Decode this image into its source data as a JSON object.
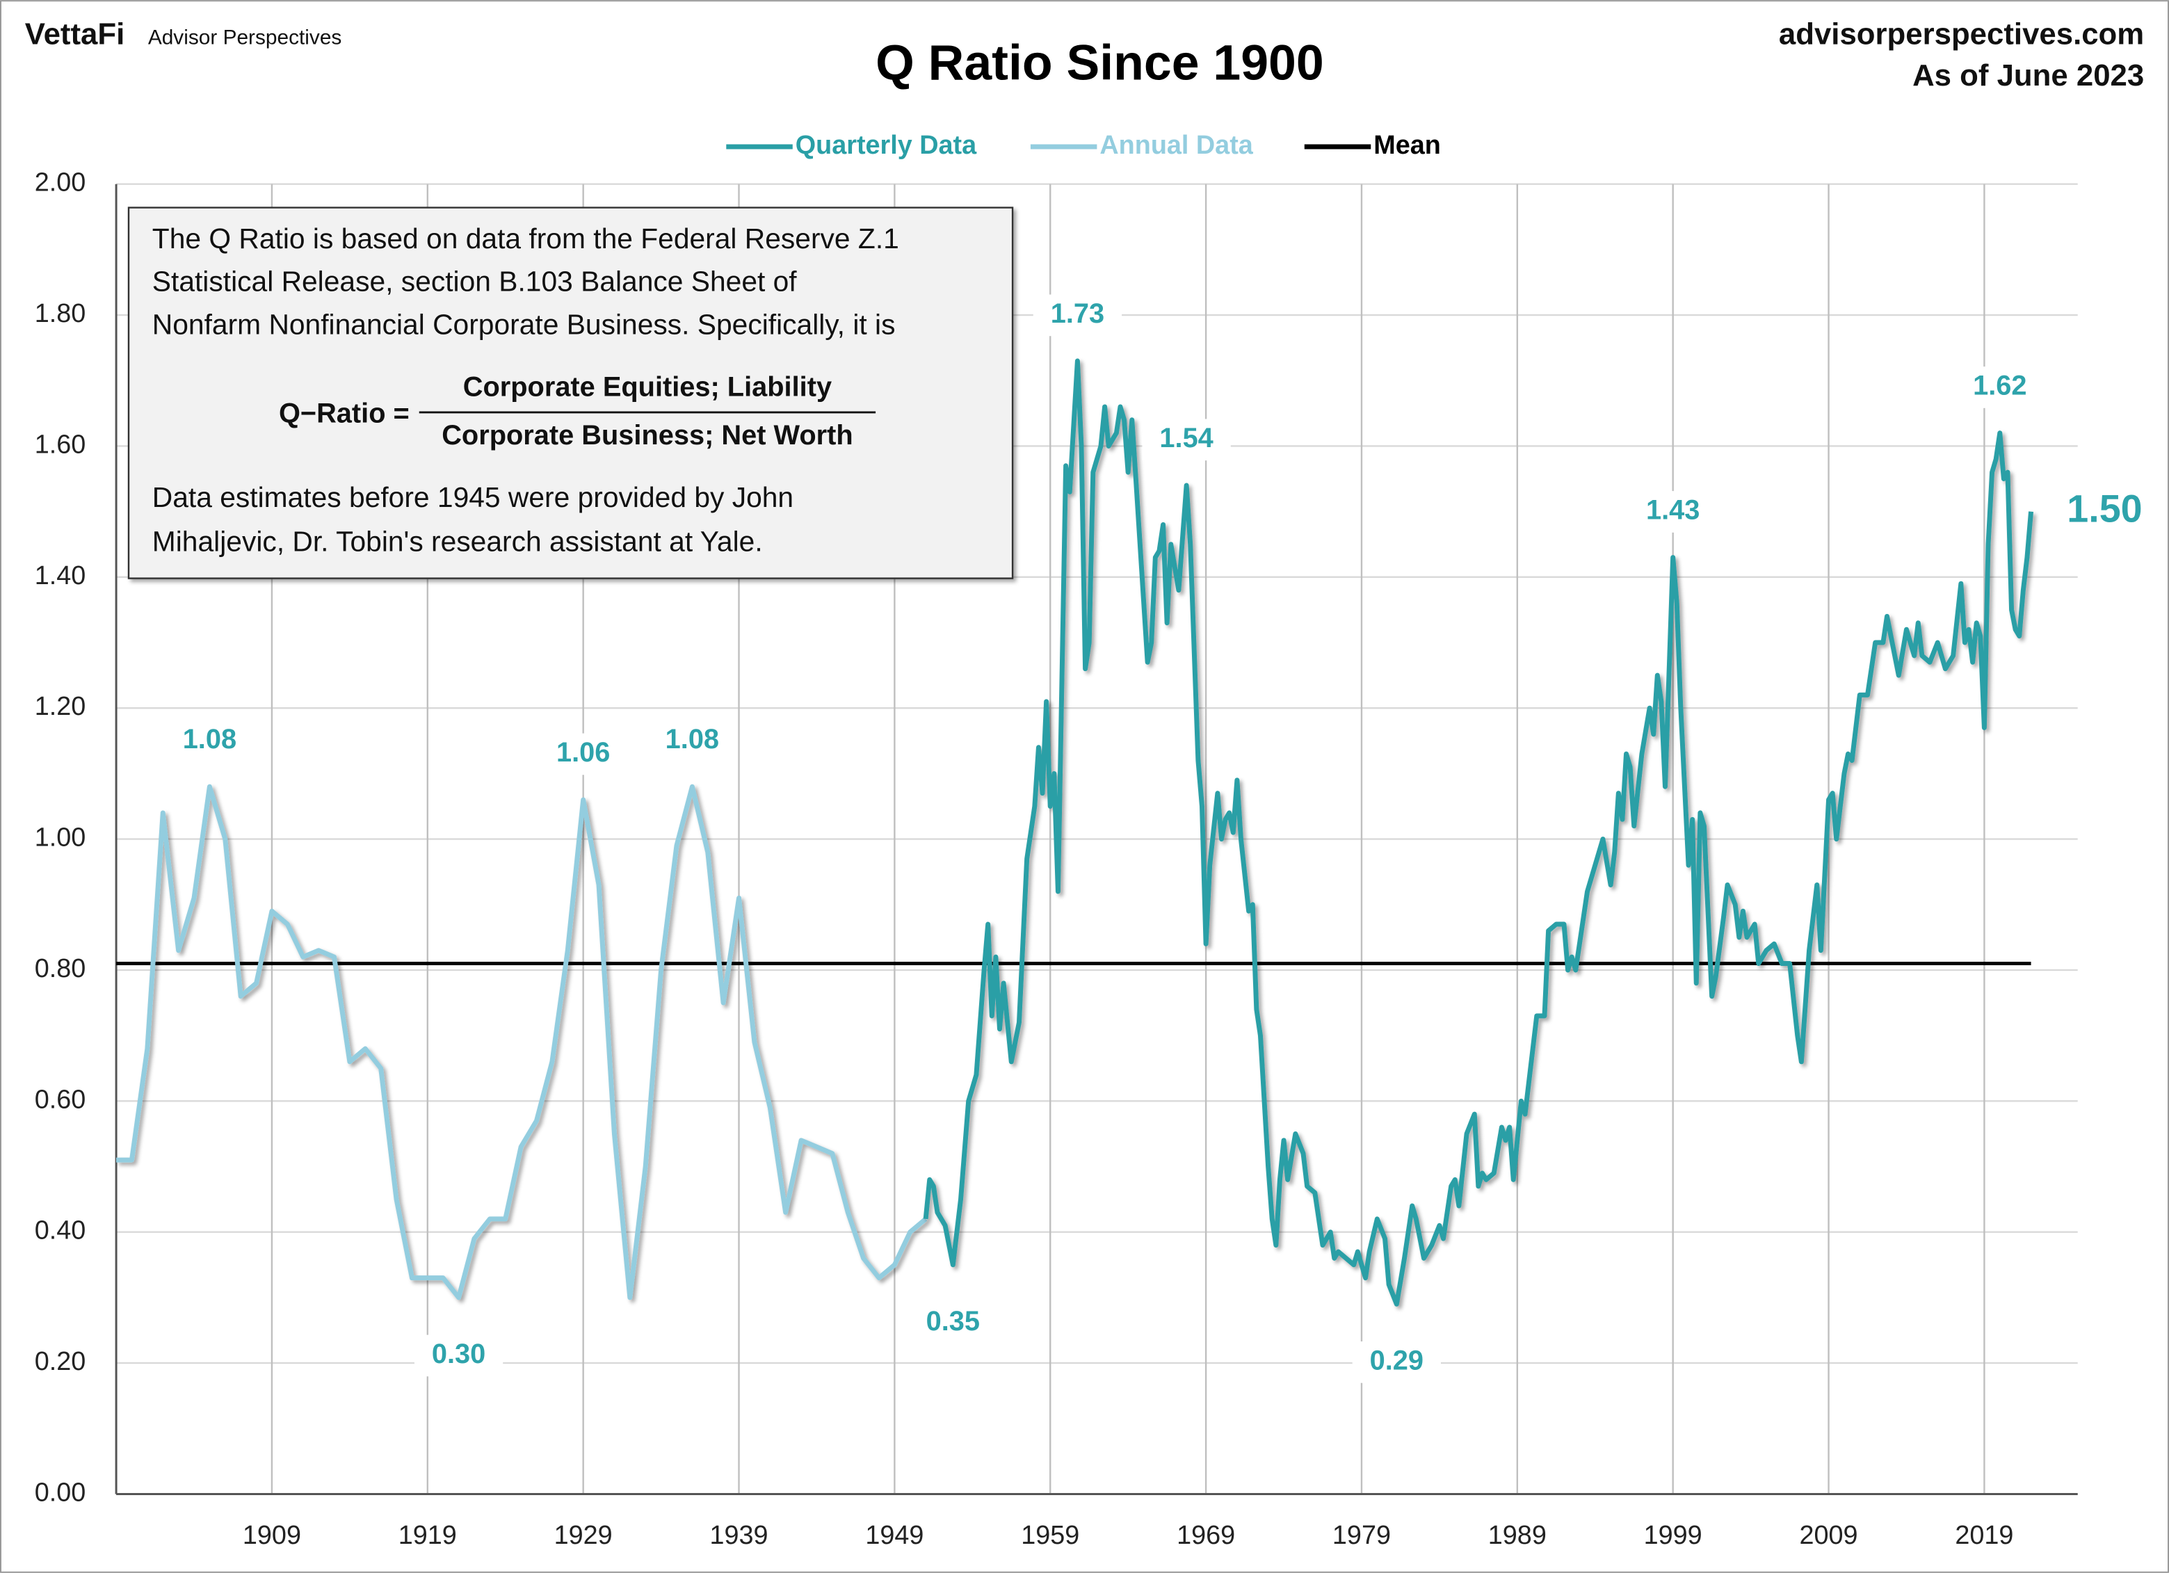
{
  "chart_data": {
    "type": "line",
    "title": "Q Ratio Since 1900",
    "brand": "VettaFi",
    "brand_sub": "Advisor Perspectives",
    "site": "advisorperspectives.com",
    "as_of": "As of June 2023",
    "xlim": [
      1899,
      2025
    ],
    "xticks": [
      1909,
      1919,
      1929,
      1939,
      1949,
      1959,
      1969,
      1979,
      1989,
      1999,
      2009,
      2019
    ],
    "ylim": [
      0,
      2
    ],
    "yticks": [
      {
        "value": 0,
        "label": "0.00"
      },
      {
        "value": 0.2,
        "label": "0.20"
      },
      {
        "value": 0.4,
        "label": "0.40"
      },
      {
        "value": 0.6,
        "label": "0.60"
      },
      {
        "value": 0.8,
        "label": "0.80"
      },
      {
        "value": 1,
        "label": "1.00"
      },
      {
        "value": 1.2,
        "label": "1.20"
      },
      {
        "value": 1.4,
        "label": "1.40"
      },
      {
        "value": 1.6,
        "label": "1.60"
      },
      {
        "value": 1.8,
        "label": "1.80"
      },
      {
        "value": 2,
        "label": "2.00"
      }
    ],
    "grid": true,
    "series": [
      {
        "name": "Quarterly Data",
        "color": "#2a9fa6",
        "x": [
          1951,
          1951.25,
          1951.5,
          1951.75,
          1952.25,
          1952.75,
          1953.25,
          1953.75,
          1954.25,
          1954.75,
          1955,
          1955.25,
          1955.5,
          1955.75,
          1956,
          1956.5,
          1957,
          1957.5,
          1958,
          1958.25,
          1958.5,
          1958.75,
          1959,
          1959.25,
          1959.5,
          1960,
          1960.25,
          1960.75,
          1961,
          1961.25,
          1961.5,
          1961.75,
          1962.25,
          1962.5,
          1962.75,
          1963.25,
          1963.5,
          1963.75,
          1964,
          1964.25,
          1964.5,
          1965.25,
          1965.5,
          1965.75,
          1966,
          1966.25,
          1966.5,
          1966.75,
          1967.25,
          1967.75,
          1968,
          1968.5,
          1968.75,
          1969,
          1969.25,
          1969.75,
          1970,
          1970.25,
          1970.5,
          1970.75,
          1971,
          1971.25,
          1971.75,
          1972,
          1972.25,
          1972.5,
          1973,
          1973.25,
          1973.5,
          1973.75,
          1974,
          1974.25,
          1974.75,
          1975.25,
          1975.5,
          1976,
          1976.5,
          1977,
          1977.25,
          1977.5,
          1978,
          1978.5,
          1978.75,
          1979.25,
          1979.5,
          1980,
          1980.5,
          1980.75,
          1981.25,
          1981.75,
          1982.25,
          1982.5,
          1983,
          1983.5,
          1984,
          1984.25,
          1984.75,
          1985,
          1985.25,
          1985.75,
          1986.25,
          1986.5,
          1986.75,
          1987,
          1987.5,
          1988,
          1988.25,
          1988.5,
          1988.75,
          1989.25,
          1989.5,
          1990,
          1990.25,
          1990.75,
          1991,
          1991.5,
          1992,
          1992.25,
          1992.5,
          1992.75,
          1993.5,
          1994,
          1994.5,
          1995,
          1995.25,
          1995.5,
          1995.75,
          1996,
          1996.25,
          1996.5,
          1997,
          1997.5,
          1997.75,
          1998,
          1998.25,
          1998.5,
          1999,
          1999.25,
          1999.5,
          2000,
          2000.25,
          2000.5,
          2000.75,
          2001,
          2001.5,
          2001.75,
          2002.25,
          2002.5,
          2003,
          2003.25,
          2003.5,
          2003.75,
          2004.25,
          2004.5,
          2005,
          2005.5,
          2006,
          2006.5,
          2007,
          2007.25,
          2007.75,
          2008.25,
          2008.5,
          2009,
          2009.25,
          2009.5,
          2010,
          2010.25,
          2010.5,
          2011,
          2011.5,
          2012,
          2012.5,
          2012.75,
          2013,
          2013.5,
          2014,
          2014.5,
          2014.75,
          2015,
          2015.5,
          2016,
          2016.5,
          2017,
          2017.5,
          2017.75,
          2018,
          2018.25,
          2018.5,
          2018.75,
          2019,
          2019.25,
          2019.5,
          2019.75,
          2020,
          2020.25,
          2020.5,
          2020.75,
          2021,
          2021.25,
          2021.5,
          2021.75,
          2022
        ],
        "values": [
          0.42,
          0.48,
          0.47,
          0.43,
          0.41,
          0.35,
          0.45,
          0.6,
          0.64,
          0.8,
          0.87,
          0.73,
          0.82,
          0.71,
          0.78,
          0.66,
          0.72,
          0.97,
          1.05,
          1.14,
          1.07,
          1.21,
          1.05,
          1.1,
          0.92,
          1.57,
          1.53,
          1.73,
          1.6,
          1.26,
          1.3,
          1.56,
          1.6,
          1.66,
          1.6,
          1.62,
          1.66,
          1.64,
          1.56,
          1.64,
          1.55,
          1.27,
          1.3,
          1.43,
          1.44,
          1.48,
          1.33,
          1.45,
          1.38,
          1.54,
          1.45,
          1.12,
          1.05,
          0.84,
          0.96,
          1.07,
          1.0,
          1.03,
          1.04,
          1.01,
          1.09,
          1.0,
          0.89,
          0.9,
          0.74,
          0.7,
          0.5,
          0.42,
          0.38,
          0.48,
          0.54,
          0.48,
          0.55,
          0.52,
          0.47,
          0.46,
          0.38,
          0.4,
          0.36,
          0.37,
          0.36,
          0.35,
          0.37,
          0.33,
          0.37,
          0.42,
          0.39,
          0.32,
          0.29,
          0.36,
          0.44,
          0.42,
          0.36,
          0.38,
          0.41,
          0.39,
          0.47,
          0.48,
          0.44,
          0.55,
          0.58,
          0.47,
          0.49,
          0.48,
          0.49,
          0.56,
          0.54,
          0.56,
          0.48,
          0.6,
          0.58,
          0.68,
          0.73,
          0.73,
          0.86,
          0.87,
          0.87,
          0.8,
          0.82,
          0.8,
          0.92,
          0.96,
          1.0,
          0.93,
          0.98,
          1.07,
          1.03,
          1.13,
          1.11,
          1.02,
          1.13,
          1.2,
          1.16,
          1.25,
          1.21,
          1.08,
          1.43,
          1.36,
          1.2,
          0.96,
          1.03,
          0.78,
          1.04,
          1.02,
          0.76,
          0.79,
          0.88,
          0.93,
          0.9,
          0.85,
          0.89,
          0.85,
          0.87,
          0.81,
          0.83,
          0.84,
          0.81,
          0.81,
          0.7,
          0.66,
          0.83,
          0.93,
          0.83,
          1.06,
          1.07,
          1.0,
          1.1,
          1.13,
          1.12,
          1.22,
          1.22,
          1.3,
          1.3,
          1.34,
          1.31,
          1.25,
          1.32,
          1.28,
          1.33,
          1.28,
          1.27,
          1.3,
          1.26,
          1.28,
          1.39,
          1.3,
          1.32,
          1.27,
          1.33,
          1.31,
          1.17,
          1.45,
          1.56,
          1.58,
          1.62,
          1.55,
          1.56,
          1.35,
          1.32,
          1.31,
          1.38,
          1.43,
          1.5
        ]
      },
      {
        "name": "Annual Data",
        "color": "#93cddf",
        "x": [
          1899,
          1900,
          1901,
          1902,
          1903,
          1904,
          1905,
          1906,
          1907,
          1908,
          1909,
          1910,
          1911,
          1912,
          1913,
          1914,
          1915,
          1916,
          1917,
          1918,
          1919,
          1920,
          1921,
          1922,
          1923,
          1924,
          1925,
          1926,
          1927,
          1928,
          1929,
          1930,
          1931,
          1932,
          1933,
          1934,
          1935,
          1936,
          1937,
          1938,
          1939,
          1940,
          1941,
          1942,
          1943,
          1944,
          1945,
          1946,
          1947,
          1948,
          1949,
          1950,
          1951
        ],
        "values": [
          0.51,
          0.51,
          0.68,
          1.04,
          0.83,
          0.91,
          1.08,
          1.0,
          0.76,
          0.78,
          0.89,
          0.87,
          0.82,
          0.83,
          0.82,
          0.66,
          0.68,
          0.65,
          0.45,
          0.33,
          0.33,
          0.33,
          0.3,
          0.39,
          0.42,
          0.42,
          0.53,
          0.57,
          0.66,
          0.83,
          1.06,
          0.93,
          0.55,
          0.3,
          0.5,
          0.8,
          0.99,
          1.08,
          0.98,
          0.75,
          0.91,
          0.69,
          0.59,
          0.43,
          0.54,
          0.53,
          0.52,
          0.43,
          0.36,
          0.33,
          0.35,
          0.4,
          0.42
        ]
      }
    ],
    "mean": {
      "name": "Mean",
      "color": "#000000",
      "value": 0.81
    },
    "annotations": [
      {
        "text": "1.08",
        "x": 1905,
        "y": 1.08
      },
      {
        "text": "0.30",
        "x": 1921,
        "y": 0.3
      },
      {
        "text": "1.06",
        "x": 1929,
        "y": 1.06
      },
      {
        "text": "1.08",
        "x": 1936,
        "y": 1.08
      },
      {
        "text": "0.35",
        "x": 1952.75,
        "y": 0.35
      },
      {
        "text": "1.73",
        "x": 1960.75,
        "y": 1.73
      },
      {
        "text": "1.54",
        "x": 1967.75,
        "y": 1.54
      },
      {
        "text": "0.29",
        "x": 1981.25,
        "y": 0.29
      },
      {
        "text": "1.43",
        "x": 1999,
        "y": 1.43
      },
      {
        "text": "1.62",
        "x": 2020,
        "y": 1.62
      },
      {
        "text": "1.50",
        "x": 2022,
        "y": 1.5
      }
    ],
    "note": {
      "lines": [
        "The Q Ratio is based on data from the Federal Reserve Z.1",
        "Statistical Release, section B.103 Balance Sheet of",
        "Nonfarm Nonfinancial Corporate Business. Specifically, it is"
      ],
      "formula_label": "Q−Ratio =",
      "numerator": "Corporate Equities; Liability",
      "denominator": "Corporate Business; Net Worth",
      "footer": [
        "Data estimates before 1945 were provided by John",
        "Mihaljevic, Dr. Tobin's research assistant at Yale."
      ]
    }
  }
}
